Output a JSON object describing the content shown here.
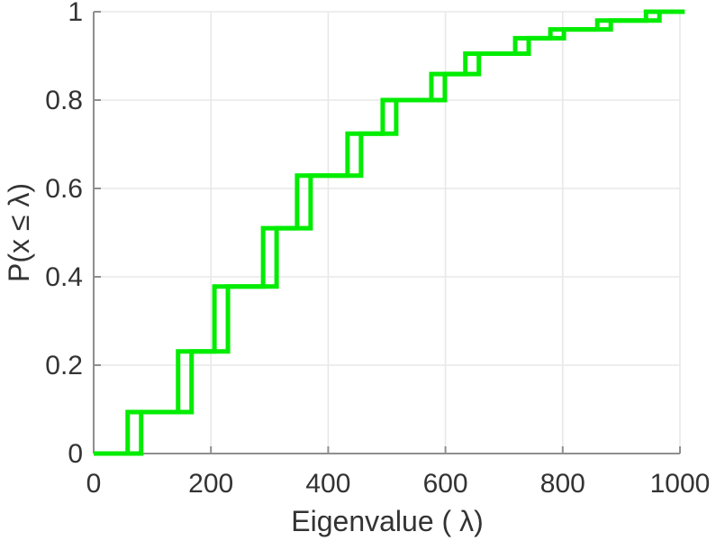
{
  "figure": {
    "background": "#ffffff"
  },
  "chart_data": {
    "type": "line",
    "subtype": "empirical-cdf-stairs",
    "title": "",
    "xlabel": "Eigenvalue ( λ)",
    "ylabel": "P(x ≤ λ)",
    "xlim": [
      0,
      1000
    ],
    "ylim": [
      0,
      1
    ],
    "xticks": [
      0,
      200,
      400,
      600,
      800,
      1000
    ],
    "yticks": [
      0,
      0.2,
      0.4,
      0.6,
      0.8,
      1
    ],
    "grid": true,
    "legend": null,
    "line_color": "#00ec00",
    "grid_color": "#e8e8e8",
    "axis_color": "#8f8f8f",
    "text_color": "#333333",
    "x_start": 0,
    "x_end": 1008,
    "riser_pair_offset": 23,
    "steps": [
      {
        "x": 58,
        "cdf": 0.094
      },
      {
        "x": 144,
        "cdf": 0.231
      },
      {
        "x": 206,
        "cdf": 0.378
      },
      {
        "x": 289,
        "cdf": 0.51
      },
      {
        "x": 347,
        "cdf": 0.629
      },
      {
        "x": 433,
        "cdf": 0.724
      },
      {
        "x": 493,
        "cdf": 0.8
      },
      {
        "x": 576,
        "cdf": 0.859
      },
      {
        "x": 634,
        "cdf": 0.905
      },
      {
        "x": 719,
        "cdf": 0.94
      },
      {
        "x": 779,
        "cdf": 0.96
      },
      {
        "x": 859,
        "cdf": 0.98
      },
      {
        "x": 942,
        "cdf": 1.0
      }
    ]
  }
}
